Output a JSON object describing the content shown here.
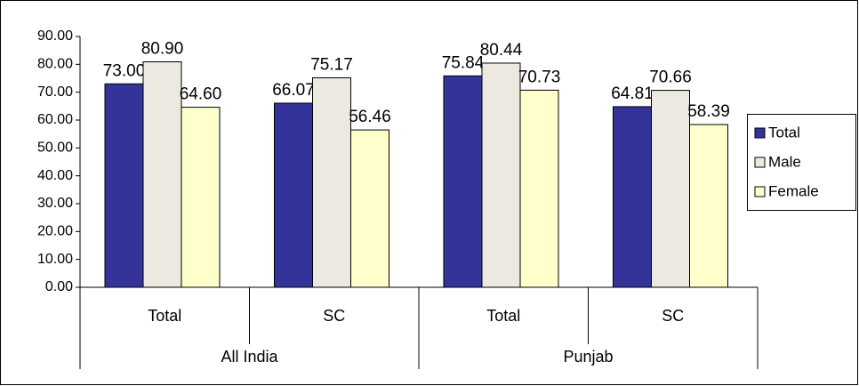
{
  "chart_data": {
    "type": "bar",
    "categories": [
      "Total",
      "SC",
      "Total",
      "SC"
    ],
    "category_groups": [
      "All India",
      "Punjab"
    ],
    "series": [
      {
        "name": "Total",
        "color": "#333399",
        "values": [
          73.0,
          66.07,
          75.84,
          64.81
        ],
        "value_labels": [
          "73.00",
          "66.07",
          "75.84",
          "64.81"
        ]
      },
      {
        "name": "Male",
        "color": "#ECE9E0",
        "values": [
          80.9,
          75.17,
          80.44,
          70.66
        ],
        "value_labels": [
          "80.90",
          "75.17",
          "80.44",
          "70.66"
        ]
      },
      {
        "name": "Female",
        "color": "#FFFFCC",
        "values": [
          64.6,
          56.46,
          70.73,
          58.39
        ],
        "value_labels": [
          "64.60",
          "56.46",
          "70.73",
          "58.39"
        ]
      }
    ],
    "ylim": [
      0,
      90
    ],
    "yticks": [
      {
        "value": 0,
        "label": "0.00"
      },
      {
        "value": 10,
        "label": "10.00"
      },
      {
        "value": 20,
        "label": "20.00"
      },
      {
        "value": 30,
        "label": "30.00"
      },
      {
        "value": 40,
        "label": "40.00"
      },
      {
        "value": 50,
        "label": "50.00"
      },
      {
        "value": 60,
        "label": "60.00"
      },
      {
        "value": 70,
        "label": "70.00"
      },
      {
        "value": 80,
        "label": "80.00"
      },
      {
        "value": 90,
        "label": "90.00"
      }
    ],
    "legend": "right"
  }
}
